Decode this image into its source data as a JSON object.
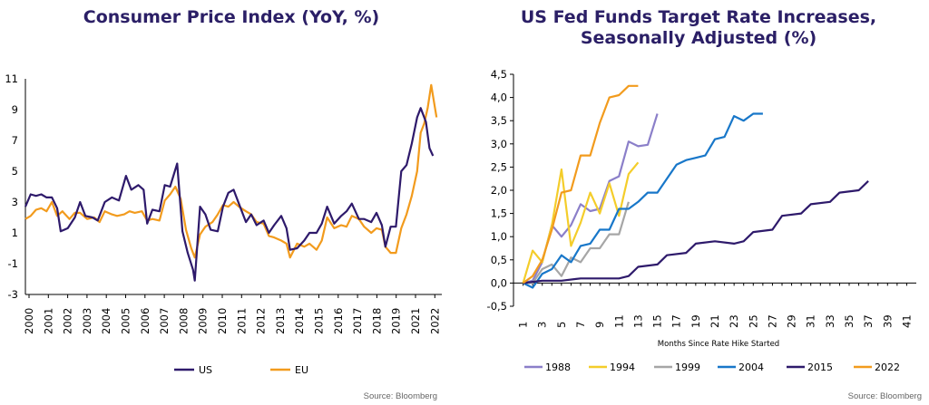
{
  "chart_data": [
    {
      "type": "line",
      "title": "Consumer Price Index (YoY, %)",
      "ylim": [
        -3,
        11
      ],
      "yticks": [
        "11",
        "9",
        "7",
        "5",
        "3",
        "1",
        "-1",
        "-3"
      ],
      "xticks": [
        "2000",
        "2001",
        "2002",
        "2003",
        "2004",
        "2005",
        "2006",
        "2007",
        "2008",
        "2009",
        "2010",
        "2011",
        "2012",
        "2013",
        "2014",
        "2015",
        "2016",
        "2017",
        "2018",
        "2019",
        "2021",
        "2022"
      ],
      "legend_position": "bottom",
      "source": "Source: Bloomberg",
      "series": [
        {
          "name": "US",
          "color": "#2e1a6b",
          "points": [
            [
              2000.0,
              2.7
            ],
            [
              2000.3,
              3.5
            ],
            [
              2000.6,
              3.4
            ],
            [
              2000.9,
              3.5
            ],
            [
              2001.2,
              3.3
            ],
            [
              2001.5,
              3.3
            ],
            [
              2001.8,
              2.6
            ],
            [
              2002.0,
              1.1
            ],
            [
              2002.4,
              1.3
            ],
            [
              2002.8,
              2.0
            ],
            [
              2003.1,
              3.0
            ],
            [
              2003.4,
              2.1
            ],
            [
              2003.8,
              2.0
            ],
            [
              2004.1,
              1.8
            ],
            [
              2004.5,
              3.0
            ],
            [
              2004.9,
              3.3
            ],
            [
              2005.3,
              3.1
            ],
            [
              2005.7,
              4.7
            ],
            [
              2006.0,
              3.8
            ],
            [
              2006.4,
              4.1
            ],
            [
              2006.7,
              3.8
            ],
            [
              2006.9,
              1.6
            ],
            [
              2007.2,
              2.5
            ],
            [
              2007.6,
              2.4
            ],
            [
              2007.9,
              4.1
            ],
            [
              2008.2,
              4.0
            ],
            [
              2008.6,
              5.5
            ],
            [
              2008.9,
              1.1
            ],
            [
              2009.2,
              -0.3
            ],
            [
              2009.5,
              -1.4
            ],
            [
              2009.6,
              -2.1
            ],
            [
              2009.9,
              2.7
            ],
            [
              2010.2,
              2.2
            ],
            [
              2010.5,
              1.2
            ],
            [
              2010.9,
              1.1
            ],
            [
              2011.2,
              2.7
            ],
            [
              2011.5,
              3.6
            ],
            [
              2011.8,
              3.8
            ],
            [
              2012.1,
              2.9
            ],
            [
              2012.5,
              1.7
            ],
            [
              2012.8,
              2.2
            ],
            [
              2013.1,
              1.5
            ],
            [
              2013.5,
              1.8
            ],
            [
              2013.8,
              1.0
            ],
            [
              2014.1,
              1.5
            ],
            [
              2014.5,
              2.1
            ],
            [
              2014.8,
              1.3
            ],
            [
              2015.0,
              -0.1
            ],
            [
              2015.4,
              0.0
            ],
            [
              2015.8,
              0.5
            ],
            [
              2016.1,
              1.0
            ],
            [
              2016.5,
              1.0
            ],
            [
              2016.8,
              1.6
            ],
            [
              2017.1,
              2.7
            ],
            [
              2017.5,
              1.6
            ],
            [
              2017.9,
              2.1
            ],
            [
              2018.2,
              2.4
            ],
            [
              2018.5,
              2.9
            ],
            [
              2018.9,
              1.9
            ],
            [
              2019.2,
              1.9
            ],
            [
              2019.6,
              1.7
            ],
            [
              2019.9,
              2.3
            ],
            [
              2020.2,
              1.5
            ],
            [
              2020.4,
              0.1
            ],
            [
              2020.7,
              1.4
            ],
            [
              2021.0,
              1.4
            ],
            [
              2021.3,
              5.0
            ],
            [
              2021.6,
              5.4
            ],
            [
              2021.9,
              6.8
            ],
            [
              2022.2,
              8.5
            ],
            [
              2022.4,
              9.1
            ],
            [
              2022.7,
              8.2
            ],
            [
              2022.9,
              6.5
            ],
            [
              2023.1,
              6.0
            ]
          ]
        },
        {
          "name": "EU",
          "color": "#f29b1d",
          "points": [
            [
              2000.0,
              1.9
            ],
            [
              2000.3,
              2.1
            ],
            [
              2000.6,
              2.5
            ],
            [
              2000.9,
              2.6
            ],
            [
              2001.2,
              2.4
            ],
            [
              2001.5,
              3.0
            ],
            [
              2001.8,
              2.1
            ],
            [
              2002.1,
              2.4
            ],
            [
              2002.5,
              1.9
            ],
            [
              2002.8,
              2.3
            ],
            [
              2003.1,
              2.3
            ],
            [
              2003.5,
              1.9
            ],
            [
              2003.9,
              2.0
            ],
            [
              2004.2,
              1.7
            ],
            [
              2004.5,
              2.4
            ],
            [
              2004.9,
              2.2
            ],
            [
              2005.2,
              2.1
            ],
            [
              2005.6,
              2.2
            ],
            [
              2005.9,
              2.4
            ],
            [
              2006.2,
              2.3
            ],
            [
              2006.6,
              2.4
            ],
            [
              2006.9,
              1.8
            ],
            [
              2007.2,
              1.9
            ],
            [
              2007.6,
              1.8
            ],
            [
              2007.9,
              3.1
            ],
            [
              2008.2,
              3.5
            ],
            [
              2008.5,
              4.0
            ],
            [
              2008.8,
              3.2
            ],
            [
              2009.1,
              1.2
            ],
            [
              2009.4,
              0.0
            ],
            [
              2009.6,
              -0.6
            ],
            [
              2009.9,
              0.9
            ],
            [
              2010.2,
              1.4
            ],
            [
              2010.6,
              1.7
            ],
            [
              2010.9,
              2.2
            ],
            [
              2011.2,
              2.8
            ],
            [
              2011.5,
              2.7
            ],
            [
              2011.8,
              3.0
            ],
            [
              2012.1,
              2.7
            ],
            [
              2012.5,
              2.4
            ],
            [
              2012.8,
              2.2
            ],
            [
              2013.1,
              1.7
            ],
            [
              2013.5,
              1.6
            ],
            [
              2013.8,
              0.8
            ],
            [
              2014.1,
              0.7
            ],
            [
              2014.5,
              0.5
            ],
            [
              2014.8,
              0.3
            ],
            [
              2015.0,
              -0.6
            ],
            [
              2015.4,
              0.3
            ],
            [
              2015.8,
              0.1
            ],
            [
              2016.1,
              0.3
            ],
            [
              2016.5,
              -0.1
            ],
            [
              2016.8,
              0.5
            ],
            [
              2017.1,
              2.0
            ],
            [
              2017.5,
              1.3
            ],
            [
              2017.9,
              1.5
            ],
            [
              2018.2,
              1.4
            ],
            [
              2018.5,
              2.1
            ],
            [
              2018.9,
              1.9
            ],
            [
              2019.2,
              1.4
            ],
            [
              2019.6,
              1.0
            ],
            [
              2019.9,
              1.3
            ],
            [
              2020.2,
              1.2
            ],
            [
              2020.4,
              0.1
            ],
            [
              2020.7,
              -0.3
            ],
            [
              2021.0,
              -0.3
            ],
            [
              2021.3,
              1.3
            ],
            [
              2021.6,
              2.2
            ],
            [
              2021.9,
              3.4
            ],
            [
              2022.2,
              5.0
            ],
            [
              2022.4,
              7.5
            ],
            [
              2022.6,
              8.1
            ],
            [
              2022.8,
              9.1
            ],
            [
              2023.0,
              10.6
            ],
            [
              2023.2,
              9.2
            ],
            [
              2023.3,
              8.5
            ]
          ]
        }
      ]
    },
    {
      "type": "line",
      "title": "US Fed Funds Target Rate Increases, Seasonally Adjusted (%)",
      "xlabel": "Months Since Rate Hike Started",
      "ylim": [
        -0.5,
        4.5
      ],
      "yticks": [
        "4,5",
        "4,0",
        "3,5",
        "3,0",
        "2,5",
        "2,0",
        "1,5",
        "1,0",
        "0,5",
        "0,0",
        "-0,5"
      ],
      "xticks": [
        "1",
        "3",
        "5",
        "7",
        "9",
        "11",
        "13",
        "15",
        "17",
        "19",
        "21",
        "23",
        "25",
        "27",
        "29",
        "31",
        "33",
        "35",
        "37",
        "39",
        "41"
      ],
      "legend_position": "bottom",
      "source": "Source: Bloomberg",
      "series": [
        {
          "name": "1988",
          "color": "#8b7fc9",
          "points": [
            [
              1,
              0.0
            ],
            [
              2,
              0.05
            ],
            [
              3,
              0.45
            ],
            [
              4,
              1.25
            ],
            [
              5,
              1.0
            ],
            [
              6,
              1.25
            ],
            [
              7,
              1.7
            ],
            [
              8,
              1.55
            ],
            [
              9,
              1.6
            ],
            [
              10,
              2.2
            ],
            [
              11,
              2.3
            ],
            [
              12,
              3.05
            ],
            [
              13,
              2.95
            ],
            [
              14,
              2.98
            ],
            [
              15,
              3.65
            ]
          ]
        },
        {
          "name": "1994",
          "color": "#f4cd2a",
          "points": [
            [
              1,
              0.0
            ],
            [
              2,
              0.7
            ],
            [
              3,
              0.45
            ],
            [
              4,
              1.25
            ],
            [
              5,
              2.45
            ],
            [
              6,
              0.8
            ],
            [
              7,
              1.3
            ],
            [
              8,
              1.95
            ],
            [
              9,
              1.5
            ],
            [
              10,
              2.15
            ],
            [
              11,
              1.45
            ],
            [
              12,
              2.35
            ],
            [
              13,
              2.6
            ]
          ]
        },
        {
          "name": "1999",
          "color": "#a6a6a6",
          "points": [
            [
              1,
              0.0
            ],
            [
              2,
              0.0
            ],
            [
              3,
              0.3
            ],
            [
              4,
              0.4
            ],
            [
              5,
              0.15
            ],
            [
              6,
              0.55
            ],
            [
              7,
              0.45
            ],
            [
              8,
              0.75
            ],
            [
              9,
              0.75
            ],
            [
              10,
              1.05
            ],
            [
              11,
              1.05
            ],
            [
              12,
              1.75
            ]
          ]
        },
        {
          "name": "2004",
          "color": "#1877c9",
          "points": [
            [
              1,
              0.0
            ],
            [
              2,
              -0.1
            ],
            [
              3,
              0.2
            ],
            [
              4,
              0.3
            ],
            [
              5,
              0.6
            ],
            [
              6,
              0.45
            ],
            [
              7,
              0.8
            ],
            [
              8,
              0.85
            ],
            [
              9,
              1.15
            ],
            [
              10,
              1.15
            ],
            [
              11,
              1.6
            ],
            [
              12,
              1.6
            ],
            [
              13,
              1.75
            ],
            [
              14,
              1.95
            ],
            [
              15,
              1.95
            ],
            [
              16,
              2.25
            ],
            [
              17,
              2.55
            ],
            [
              18,
              2.65
            ],
            [
              19,
              2.7
            ],
            [
              20,
              2.75
            ],
            [
              21,
              3.1
            ],
            [
              22,
              3.15
            ],
            [
              23,
              3.6
            ],
            [
              24,
              3.5
            ],
            [
              25,
              3.65
            ],
            [
              26,
              3.65
            ]
          ]
        },
        {
          "name": "2015",
          "color": "#2e1a6b",
          "points": [
            [
              1,
              0.0
            ],
            [
              3,
              0.05
            ],
            [
              5,
              0.05
            ],
            [
              7,
              0.1
            ],
            [
              9,
              0.1
            ],
            [
              11,
              0.1
            ],
            [
              12,
              0.15
            ],
            [
              13,
              0.35
            ],
            [
              15,
              0.4
            ],
            [
              16,
              0.6
            ],
            [
              18,
              0.65
            ],
            [
              19,
              0.85
            ],
            [
              21,
              0.9
            ],
            [
              23,
              0.85
            ],
            [
              24,
              0.9
            ],
            [
              25,
              1.1
            ],
            [
              27,
              1.15
            ],
            [
              28,
              1.45
            ],
            [
              30,
              1.5
            ],
            [
              31,
              1.7
            ],
            [
              33,
              1.75
            ],
            [
              34,
              1.95
            ],
            [
              36,
              2.0
            ],
            [
              37,
              2.2
            ]
          ]
        },
        {
          "name": "2022",
          "color": "#f29b1d",
          "points": [
            [
              1,
              0.0
            ],
            [
              2,
              0.15
            ],
            [
              3,
              0.5
            ],
            [
              4,
              1.15
            ],
            [
              5,
              1.95
            ],
            [
              6,
              2.0
            ],
            [
              7,
              2.75
            ],
            [
              8,
              2.75
            ],
            [
              9,
              3.45
            ],
            [
              10,
              4.0
            ],
            [
              11,
              4.05
            ],
            [
              12,
              4.25
            ],
            [
              13,
              4.25
            ]
          ]
        }
      ]
    }
  ]
}
